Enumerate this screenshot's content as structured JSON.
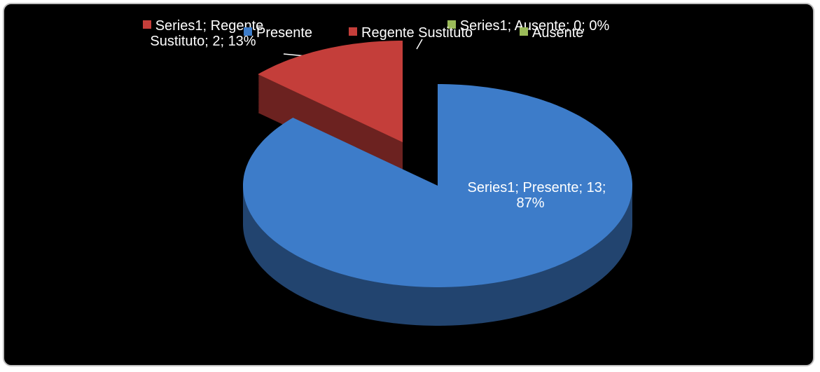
{
  "chart_data": {
    "type": "pie",
    "series_name": "Series1",
    "categories": [
      "Presente",
      "Regente Sustituto",
      "Ausente"
    ],
    "values": [
      13,
      2,
      0
    ],
    "value_labels": [
      "Series1; Presente; 13; 87%",
      "Series1; Regente Sustituto; 2; 13%",
      "Series1; Ausente; 0; 0%"
    ],
    "colors": [
      "#3d7cc9",
      "#c43e3a",
      "#9bbb59"
    ],
    "legend": "top"
  }
}
